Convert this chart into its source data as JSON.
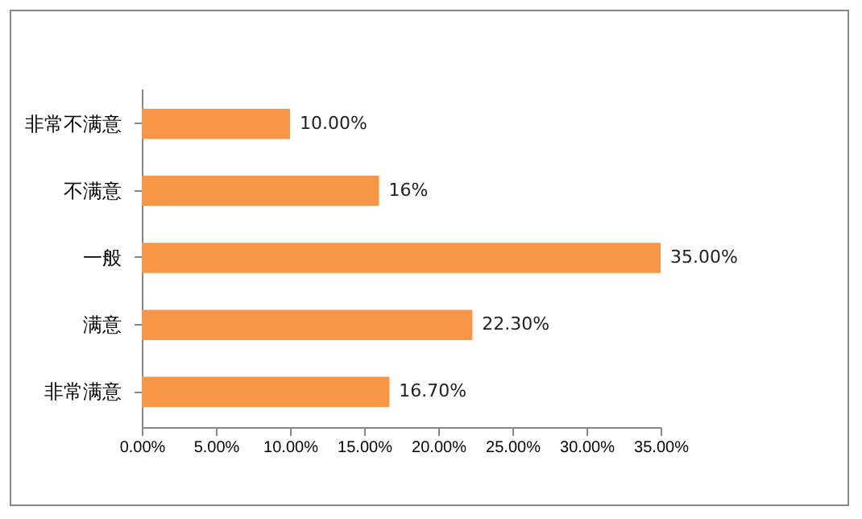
{
  "chart_data": {
    "type": "bar",
    "orientation": "horizontal",
    "categories": [
      "非常不满意",
      "不满意",
      "一般",
      "满意",
      "非常满意"
    ],
    "values": [
      10,
      16,
      35,
      22.3,
      16.7
    ],
    "value_labels": [
      "10.00%",
      "16%",
      "35.00%",
      "22.30%",
      "16.70%"
    ],
    "color": "#f79646",
    "xlim": [
      0,
      35
    ],
    "xticks": [
      {
        "value": 0,
        "label": "0.00%"
      },
      {
        "value": 5,
        "label": "5.00%"
      },
      {
        "value": 10,
        "label": "10.00%"
      },
      {
        "value": 15,
        "label": "15.00%"
      },
      {
        "value": 20,
        "label": "20.00%"
      },
      {
        "value": 25,
        "label": "25.00%"
      },
      {
        "value": 30,
        "label": "30.00%"
      },
      {
        "value": 35,
        "label": "35.00%"
      }
    ],
    "grid": false
  }
}
